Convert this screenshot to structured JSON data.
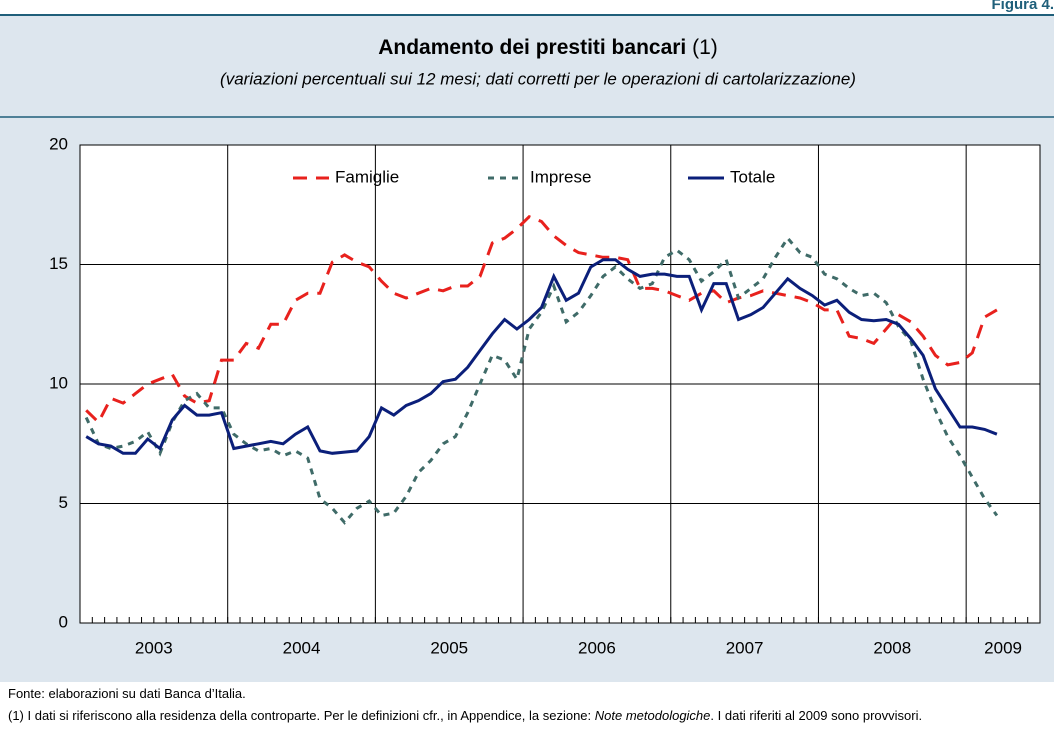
{
  "figure_label": "Figura 4.",
  "chart_data": {
    "type": "line",
    "title": "Andamento dei prestiti bancari",
    "title_note": "(1)",
    "subtitle": "(variazioni percentuali sui 12 mesi; dati corretti per le operazioni di cartolarizzazione)",
    "categories": [
      null,
      null,
      null,
      null,
      null,
      null,
      "2003",
      null,
      null,
      null,
      null,
      null,
      null,
      null,
      null,
      null,
      null,
      null,
      "2004",
      null,
      null,
      null,
      null,
      null,
      null,
      null,
      null,
      null,
      null,
      null,
      "2005",
      null,
      null,
      null,
      null,
      null,
      null,
      null,
      null,
      null,
      null,
      null,
      "2006",
      null,
      null,
      null,
      null,
      null,
      null,
      null,
      null,
      null,
      null,
      null,
      "2007",
      null,
      null,
      null,
      null,
      null,
      null,
      null,
      null,
      null,
      null,
      null,
      "2008",
      null,
      null,
      null,
      null,
      null,
      null,
      null,
      null,
      "2009",
      null,
      null
    ],
    "ylim": [
      0,
      20
    ],
    "yticks": [
      0,
      5,
      10,
      15,
      20
    ],
    "grid": true,
    "legend": "top",
    "series": [
      {
        "name": "Famiglie",
        "color": "#e8211d",
        "dash": "dashed",
        "values": [
          8.9,
          8.4,
          9.4,
          9.2,
          9.6,
          10.0,
          10.2,
          10.4,
          9.5,
          9.2,
          9.3,
          11.0,
          11.0,
          11.7,
          11.5,
          12.5,
          12.5,
          13.5,
          13.8,
          13.8,
          15.1,
          15.4,
          15.1,
          14.9,
          14.3,
          13.8,
          13.6,
          13.8,
          14.0,
          13.9,
          14.1,
          14.1,
          14.5,
          15.9,
          16.1,
          16.5,
          17.0,
          16.8,
          16.2,
          15.8,
          15.5,
          15.4,
          15.3,
          15.3,
          15.2,
          14.0,
          14.0,
          13.9,
          13.7,
          13.5,
          13.8,
          13.9,
          13.4,
          13.6,
          13.7,
          13.9,
          13.8,
          13.7,
          13.6,
          13.4,
          13.1,
          13.1,
          12.0,
          11.9,
          11.7,
          12.3,
          12.9,
          12.6,
          12.0,
          11.2,
          10.8,
          10.9,
          11.3,
          12.8,
          13.1,
          null,
          null,
          null
        ]
      },
      {
        "name": "Imprese",
        "color": "#3f6b68",
        "dash": "dotted",
        "values": [
          8.6,
          7.5,
          7.3,
          7.4,
          7.6,
          8.0,
          7.1,
          8.4,
          9.3,
          9.6,
          9.0,
          9.0,
          7.9,
          7.5,
          7.2,
          7.3,
          7.0,
          7.2,
          6.9,
          5.2,
          4.8,
          4.2,
          4.8,
          5.1,
          4.5,
          4.6,
          5.3,
          6.3,
          6.8,
          7.5,
          7.8,
          8.8,
          10.0,
          11.2,
          11.0,
          10.2,
          12.3,
          13.0,
          14.1,
          12.6,
          13.0,
          13.7,
          14.5,
          14.9,
          14.4,
          14.0,
          14.2,
          15.3,
          15.6,
          15.2,
          14.3,
          14.7,
          15.2,
          13.6,
          14.0,
          14.4,
          15.3,
          16.1,
          15.5,
          15.3,
          14.6,
          14.4,
          14.0,
          13.7,
          13.8,
          13.4,
          12.4,
          11.8,
          10.2,
          8.9,
          7.8,
          7.0,
          6.1,
          5.2,
          4.5,
          null,
          null,
          null
        ]
      },
      {
        "name": "Totale",
        "color": "#0b1f7a",
        "dash": "solid",
        "values": [
          7.8,
          7.5,
          7.4,
          7.1,
          7.1,
          7.7,
          7.3,
          8.5,
          9.1,
          8.7,
          8.7,
          8.8,
          7.3,
          7.4,
          7.5,
          7.6,
          7.5,
          7.9,
          8.2,
          7.2,
          7.1,
          7.15,
          7.2,
          7.8,
          9.0,
          8.7,
          9.1,
          9.3,
          9.6,
          10.1,
          10.2,
          10.7,
          11.4,
          12.1,
          12.7,
          12.3,
          12.7,
          13.2,
          14.5,
          13.5,
          13.8,
          14.9,
          15.2,
          15.2,
          14.8,
          14.5,
          14.6,
          14.6,
          14.5,
          14.5,
          13.1,
          14.2,
          14.2,
          12.7,
          12.9,
          13.2,
          13.8,
          14.4,
          14.0,
          13.7,
          13.3,
          13.5,
          13.0,
          12.7,
          12.65,
          12.7,
          12.5,
          11.9,
          11.2,
          9.8,
          9.0,
          8.2,
          8.2,
          8.1,
          7.9,
          null,
          null,
          null
        ]
      }
    ]
  },
  "footer": {
    "source": "Fonte: elaborazioni su dati Banca d’Italia.",
    "note_start": "(1) I dati si riferiscono alla residenza della controparte. Per le definizioni cfr., in Appendice, la sezione: ",
    "note_italic": "Note metodologiche",
    "note_end": ". I dati riferiti al 2009 sono provvisori."
  }
}
